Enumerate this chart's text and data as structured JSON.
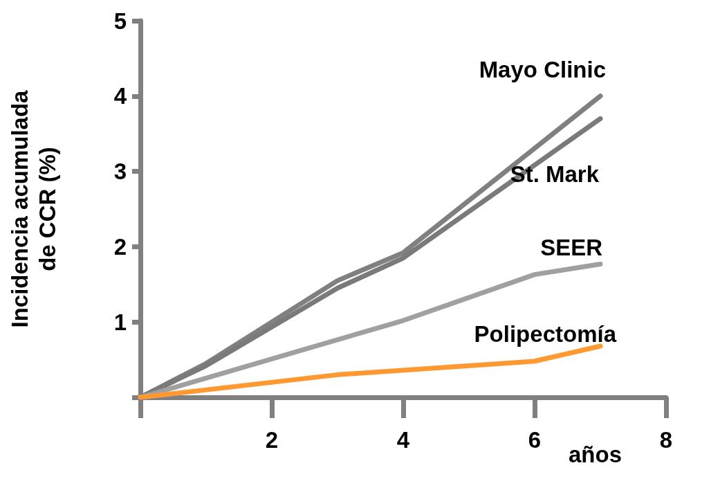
{
  "chart_data": {
    "type": "line",
    "xlabel": "años",
    "ylabel": "Incidencia acumulada\nde CCR (%)",
    "xlim": [
      0,
      8
    ],
    "xticks": [
      {
        "value": 0,
        "label": null
      },
      2,
      4,
      6,
      8
    ],
    "ylim": [
      0,
      5
    ],
    "yticks": [
      {
        "value": 0,
        "label": null
      },
      1,
      2,
      3,
      4,
      5
    ],
    "grid": false,
    "legend": false,
    "marker": "none",
    "line_style": "solid",
    "series": [
      {
        "name": "Mayo Clinic",
        "color": "#808080",
        "x": [
          0,
          1,
          3,
          4,
          7
        ],
        "values": [
          0,
          0.45,
          1.55,
          1.92,
          4.0
        ]
      },
      {
        "name": "St. Mark",
        "color": "#7a7a7a",
        "x": [
          0,
          1,
          3,
          4,
          7
        ],
        "values": [
          0,
          0.42,
          1.45,
          1.85,
          3.7
        ]
      },
      {
        "name": "SEER",
        "color": "#a0a0a0",
        "x": [
          0,
          4,
          6,
          7
        ],
        "values": [
          0,
          1.02,
          1.63,
          1.77
        ]
      },
      {
        "name": "Polipectomía",
        "color": "#ff9a33",
        "x": [
          0,
          3,
          6,
          7
        ],
        "values": [
          0,
          0.3,
          0.48,
          0.68
        ]
      }
    ]
  }
}
